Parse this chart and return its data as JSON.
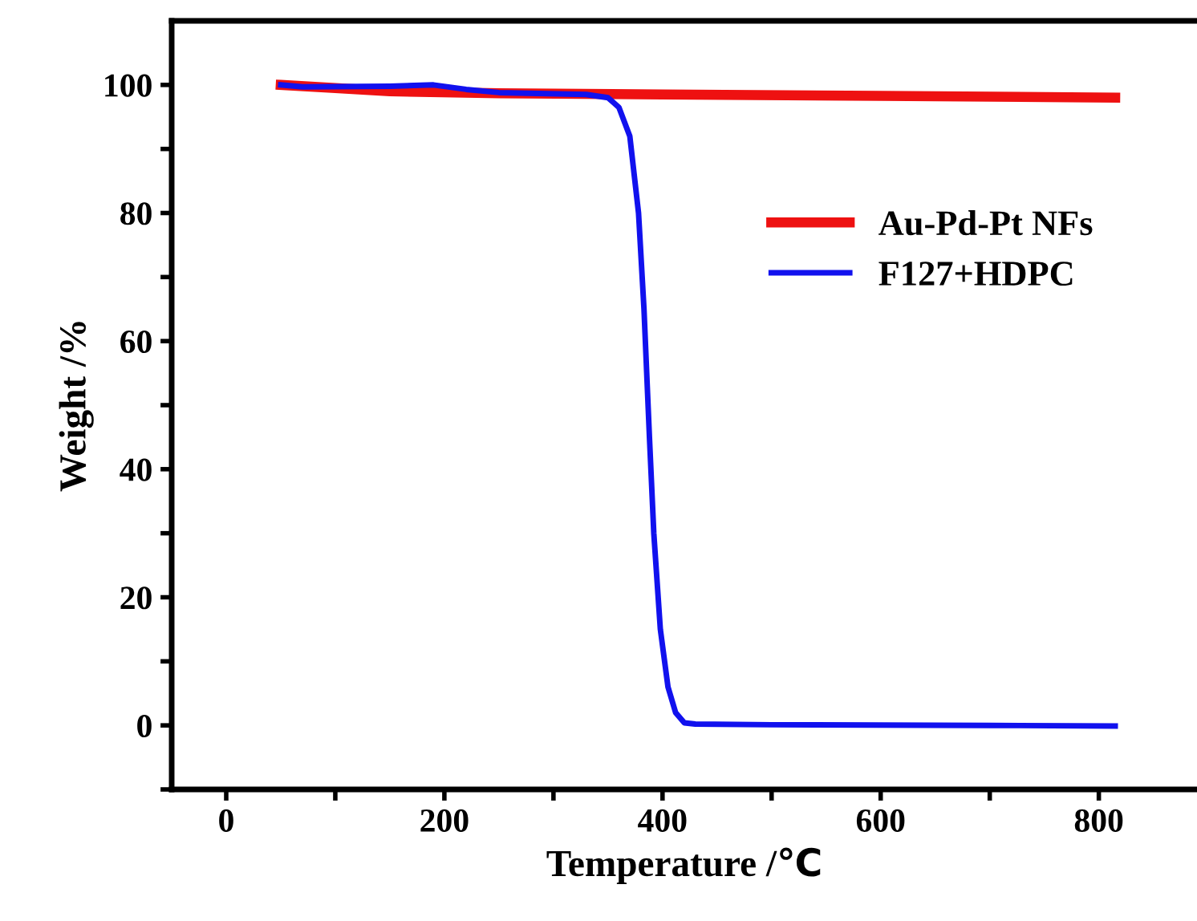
{
  "chart_data": {
    "type": "line",
    "xlabel": "Temperature /℃",
    "ylabel": "Weight /%",
    "xlim": [
      -50,
      890
    ],
    "ylim": [
      -10,
      110
    ],
    "xticks": [
      0,
      {
        "value": 100,
        "label": null
      },
      200,
      {
        "value": 300,
        "label": null
      },
      400,
      {
        "value": 500,
        "label": null
      },
      600,
      {
        "value": 700,
        "label": null
      },
      800
    ],
    "yticks": [
      {
        "value": -10,
        "label": null
      },
      0,
      {
        "value": 10,
        "label": null
      },
      20,
      {
        "value": 30,
        "label": null
      },
      40,
      {
        "value": 50,
        "label": null
      },
      60,
      {
        "value": 70,
        "label": null
      },
      80,
      {
        "value": 90,
        "label": null
      },
      100
    ],
    "grid": false,
    "legend": "right",
    "marker": "none",
    "line_style": "solid",
    "series": [
      {
        "name": "Au-Pd-Pt NFs",
        "color": "#ee1111",
        "x": [
          50,
          100,
          150,
          250,
          400,
          600,
          815
        ],
        "values": [
          100,
          99.5,
          99,
          98.7,
          98.5,
          98.3,
          98.0
        ]
      },
      {
        "name": "F127+HDPC",
        "color": "#1111ee",
        "x": [
          50,
          70,
          150,
          190,
          220,
          250,
          330,
          350,
          360,
          370,
          378,
          383,
          388,
          392,
          398,
          405,
          412,
          420,
          430,
          500,
          700,
          815
        ],
        "values": [
          100,
          99.7,
          99.8,
          100,
          99.3,
          98.8,
          98.5,
          98,
          96.5,
          92,
          80,
          65,
          45,
          30,
          15,
          6,
          2,
          0.4,
          0.2,
          0.1,
          0,
          -0.1
        ]
      }
    ]
  }
}
